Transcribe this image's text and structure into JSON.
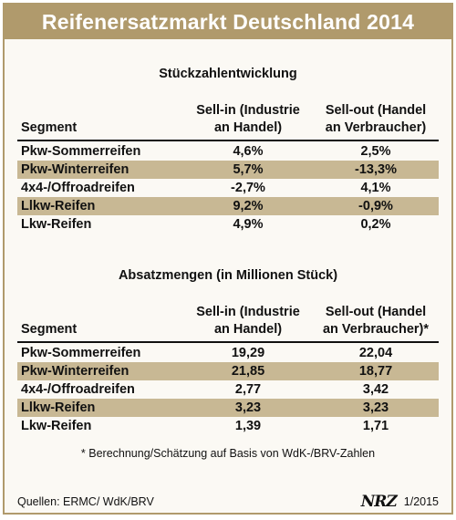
{
  "title": "Reifenersatzmarkt Deutschland 2014",
  "section1": {
    "title": "Stückzahlentwicklung",
    "headers": {
      "segment": "Segment",
      "col1_line1": "Sell-in (Industrie",
      "col1_line2": "an Handel)",
      "col2_line1": "Sell-out (Handel",
      "col2_line2": "an Verbraucher)"
    },
    "rows": [
      {
        "segment": "Pkw-Sommerreifen",
        "sell_in": "4,6%",
        "sell_out": "2,5%"
      },
      {
        "segment": "Pkw-Winterreifen",
        "sell_in": "5,7%",
        "sell_out": "-13,3%"
      },
      {
        "segment": "4x4-/Offroadreifen",
        "sell_in": "-2,7%",
        "sell_out": "4,1%"
      },
      {
        "segment": "Llkw-Reifen",
        "sell_in": "9,2%",
        "sell_out": "-0,9%"
      },
      {
        "segment": "Lkw-Reifen",
        "sell_in": "4,9%",
        "sell_out": "0,2%"
      }
    ]
  },
  "section2": {
    "title": "Absatzmengen (in Millionen Stück)",
    "headers": {
      "segment": "Segment",
      "col1_line1": "Sell-in (Industrie",
      "col1_line2": "an Handel)",
      "col2_line1": "Sell-out (Handel",
      "col2_line2": "an Verbraucher)*"
    },
    "rows": [
      {
        "segment": "Pkw-Sommerreifen",
        "sell_in": "19,29",
        "sell_out": "22,04"
      },
      {
        "segment": "Pkw-Winterreifen",
        "sell_in": "21,85",
        "sell_out": "18,77"
      },
      {
        "segment": "4x4-/Offroadreifen",
        "sell_in": "2,77",
        "sell_out": "3,42"
      },
      {
        "segment": "Llkw-Reifen",
        "sell_in": "3,23",
        "sell_out": "3,23"
      },
      {
        "segment": "Lkw-Reifen",
        "sell_in": "1,39",
        "sell_out": "1,71"
      }
    ]
  },
  "footnote": "* Berechnung/Schätzung auf Basis von WdK-/BRV-Zahlen",
  "sources": "Quellen: ERMC/ WdK/BRV",
  "brand": {
    "logo": "NRZ",
    "date": "1/2015"
  },
  "colors": {
    "accent": "#b09a6c",
    "row_shade": "#c8b894",
    "background": "#fbf9f4"
  }
}
